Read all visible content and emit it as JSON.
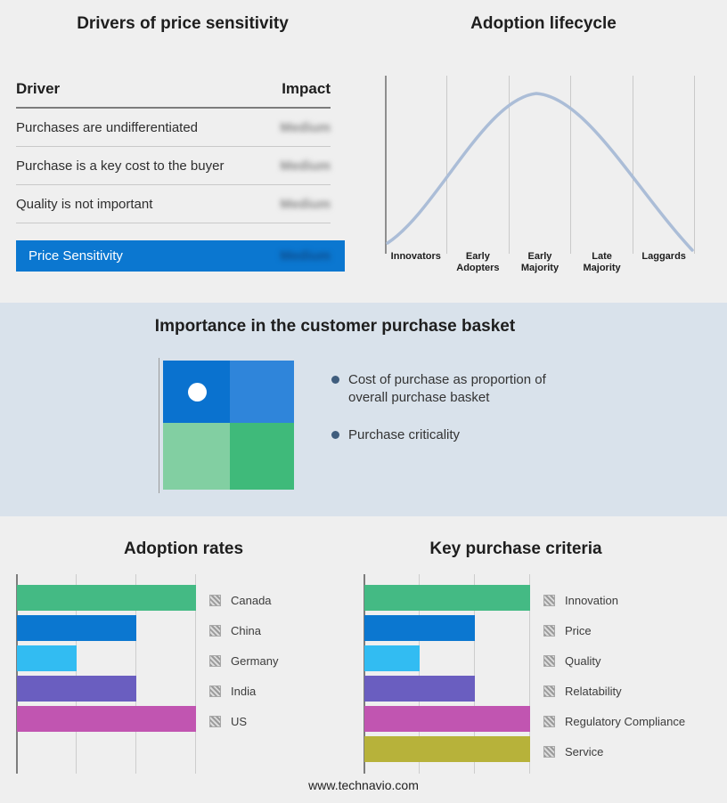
{
  "sections": {
    "price_sensitivity": {
      "title": "Drivers of price sensitivity",
      "table": {
        "col_driver": "Driver",
        "col_impact": "Impact",
        "rows": [
          {
            "driver": "Purchases are undifferentiated",
            "impact": "Medium"
          },
          {
            "driver": "Purchase is a key cost to the buyer",
            "impact": "Medium"
          },
          {
            "driver": "Quality is not important",
            "impact": "Medium"
          }
        ],
        "summary": {
          "driver": "Price Sensitivity",
          "impact": "Medium"
        }
      }
    },
    "purchase_basket": {
      "title": "Importance in the customer purchase basket",
      "bullets": [
        "Cost of purchase as proportion of overall purchase basket",
        "Purchase criticality"
      ],
      "quadrant_colors": [
        "#0a72cf",
        "#2f85da",
        "#82cfa2",
        "#3fba7a"
      ]
    }
  },
  "chart_data": [
    {
      "id": "adoption-lifecycle",
      "type": "line",
      "title": "Adoption lifecycle",
      "x_categories": [
        "Innovators",
        "Early Adopters",
        "Early Majority",
        "Late Majority",
        "Laggards"
      ],
      "shape": "bell curve peaking over Early Majority",
      "line_color": "#abbdd7",
      "grid": true,
      "legend_position": "none"
    },
    {
      "id": "adoption-rates",
      "type": "bar",
      "title": "Adoption rates",
      "orientation": "horizontal",
      "categories": [
        "Canada",
        "China",
        "Germany",
        "India",
        "US"
      ],
      "values": [
        3,
        2,
        1,
        2,
        3
      ],
      "xlim": [
        0,
        3
      ],
      "colors": [
        "#44ba84",
        "#0b77d0",
        "#32bcf2",
        "#6a5ec0",
        "#c155b1"
      ],
      "grid": true,
      "legend_position": "right"
    },
    {
      "id": "key-purchase-criteria",
      "type": "bar",
      "title": "Key purchase criteria",
      "orientation": "horizontal",
      "categories": [
        "Innovation",
        "Price",
        "Quality",
        "Relatability",
        "Regulatory Compliance",
        "Service"
      ],
      "values": [
        3,
        2,
        1,
        2,
        3,
        3
      ],
      "xlim": [
        0,
        3
      ],
      "colors": [
        "#44ba84",
        "#0b77d0",
        "#32bcf2",
        "#6a5ec0",
        "#c155b1",
        "#b7b23a"
      ],
      "grid": true,
      "legend_position": "right"
    }
  ],
  "footer": {
    "url_text": "www.technavio.com"
  }
}
